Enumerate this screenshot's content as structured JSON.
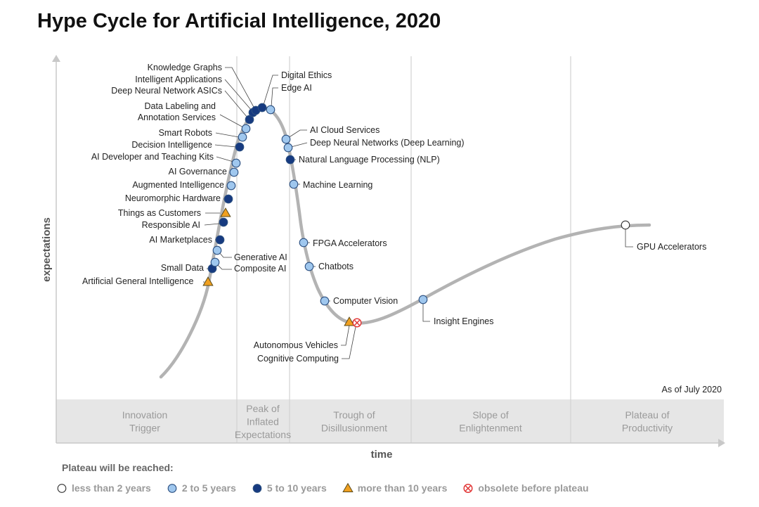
{
  "title": "Hype Cycle for Artificial Intelligence, 2020",
  "as_of": "As of July 2020",
  "legend_title": "Plateau will be reached:",
  "chart_data": {
    "type": "hype-cycle",
    "xlabel": "time",
    "ylabel": "expectations",
    "phases": [
      "Innovation Trigger",
      "Peak of Inflated Expectations",
      "Trough of Disillusionment",
      "Slope of Enlightenment",
      "Plateau of Productivity"
    ],
    "phase_labels": [
      [
        "Innovation",
        "Trigger"
      ],
      [
        "Peak of",
        "Inflated",
        "Expectations"
      ],
      [
        "Trough of",
        "Disillusionment"
      ],
      [
        "Slope of",
        "Enlightenment"
      ],
      [
        "Plateau of",
        "Productivity"
      ]
    ],
    "legend": [
      {
        "key": "lt2",
        "label": "less than 2 years",
        "color": "#ffffff"
      },
      {
        "key": "2to5",
        "label": "2 to 5 years",
        "color": "#9fc7ee"
      },
      {
        "key": "5to10",
        "label": "5 to 10 years",
        "color": "#163a80"
      },
      {
        "key": "gt10",
        "label": "more than 10 years",
        "color": "#f0a020"
      },
      {
        "key": "obsolete",
        "label": "obsolete before plateau",
        "color": "#e03030"
      }
    ],
    "technologies": [
      {
        "name": "Artificial General Intelligence",
        "cat": "gt10"
      },
      {
        "name": "Small Data",
        "cat": "5to10"
      },
      {
        "name": "Composite AI",
        "cat": "2to5"
      },
      {
        "name": "Generative AI",
        "cat": "2to5"
      },
      {
        "name": "AI Marketplaces",
        "cat": "5to10"
      },
      {
        "name": "Responsible AI",
        "cat": "5to10"
      },
      {
        "name": "Things as Customers",
        "cat": "gt10"
      },
      {
        "name": "Neuromorphic Hardware",
        "cat": "5to10"
      },
      {
        "name": "Augmented Intelligence",
        "cat": "2to5"
      },
      {
        "name": "AI Governance",
        "cat": "2to5"
      },
      {
        "name": "AI Developer and Teaching Kits",
        "cat": "2to5"
      },
      {
        "name": "Decision Intelligence",
        "cat": "5to10"
      },
      {
        "name": "Smart Robots",
        "cat": "2to5"
      },
      {
        "name": "Data Labeling and Annotation Services",
        "lines": [
          "Data Labeling and",
          "Annotation Services"
        ],
        "cat": "2to5"
      },
      {
        "name": "Deep Neural Network ASICs",
        "cat": "5to10"
      },
      {
        "name": "Intelligent Applications",
        "cat": "5to10"
      },
      {
        "name": "Knowledge Graphs",
        "cat": "5to10"
      },
      {
        "name": "Digital Ethics",
        "cat": "5to10"
      },
      {
        "name": "Edge AI",
        "cat": "2to5"
      },
      {
        "name": "AI Cloud Services",
        "cat": "2to5"
      },
      {
        "name": "Deep Neural Networks (Deep Learning)",
        "cat": "2to5"
      },
      {
        "name": "Natural Language Processing (NLP)",
        "cat": "5to10"
      },
      {
        "name": "Machine Learning",
        "cat": "2to5"
      },
      {
        "name": "FPGA Accelerators",
        "cat": "2to5"
      },
      {
        "name": "Chatbots",
        "cat": "2to5"
      },
      {
        "name": "Computer Vision",
        "cat": "2to5"
      },
      {
        "name": "Autonomous Vehicles",
        "cat": "gt10"
      },
      {
        "name": "Cognitive Computing",
        "cat": "obsolete"
      },
      {
        "name": "Insight Engines",
        "cat": "2to5"
      },
      {
        "name": "GPU Accelerators",
        "cat": "lt2"
      }
    ]
  }
}
